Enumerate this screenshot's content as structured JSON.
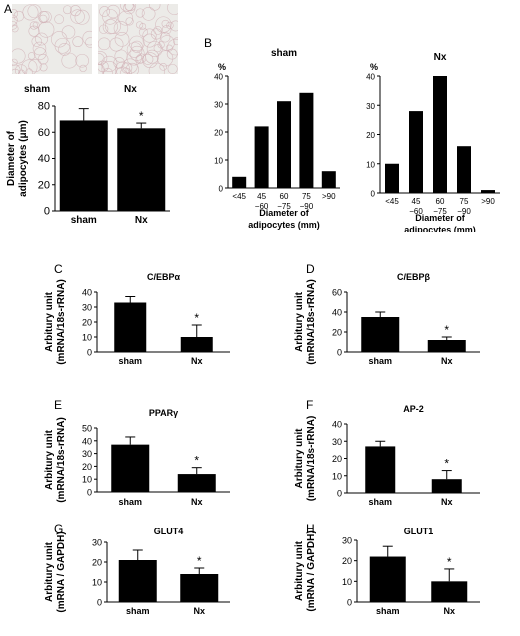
{
  "panel_letters": [
    "A",
    "B",
    "C",
    "D",
    "E",
    "F",
    "G",
    "H"
  ],
  "photos": [
    {
      "label": "sham"
    },
    {
      "label": "Nx"
    }
  ],
  "colors": {
    "bar": "#000000",
    "axis": "#000000",
    "photo_bg": "#ecebe8",
    "photo_cells": "#d2b3b8"
  },
  "chart_data": [
    {
      "panel": "A",
      "type": "bar",
      "categories": [
        "sham",
        "Nx"
      ],
      "values": [
        69,
        63
      ],
      "errors": [
        9,
        4
      ],
      "significance": [
        "",
        "*"
      ],
      "title": "",
      "xlabel": "",
      "ylabel_lines": [
        "Diameter of",
        "adipocytes (μm)"
      ],
      "ylim": [
        0,
        80
      ],
      "yticks": [
        0,
        20,
        40,
        60,
        80
      ]
    },
    {
      "panel": "B",
      "type": "bar",
      "categories": [
        [
          "<45"
        ],
        [
          "45",
          "−60"
        ],
        [
          "60",
          "−75"
        ],
        [
          "75",
          "−90"
        ],
        [
          ">90"
        ]
      ],
      "values": [
        4,
        22,
        31,
        34,
        6
      ],
      "title": "sham",
      "unit": "%",
      "xlabel_lines": [
        "Diameter of",
        "adipocytes (mm)"
      ],
      "ylim": [
        0,
        40
      ],
      "yticks": [
        0,
        10,
        20,
        30,
        40
      ]
    },
    {
      "panel": "B",
      "type": "bar",
      "categories": [
        [
          "<45"
        ],
        [
          "45",
          "−60"
        ],
        [
          "60",
          "−75"
        ],
        [
          "75",
          "−90"
        ],
        [
          ">90"
        ]
      ],
      "values": [
        10,
        28,
        40,
        16,
        1
      ],
      "title": "Nx",
      "unit": "%",
      "xlabel_lines": [
        "Diameter of",
        "adipocytes (mm)"
      ],
      "ylim": [
        0,
        40
      ],
      "yticks": [
        0,
        10,
        20,
        30,
        40
      ]
    },
    {
      "panel": "C",
      "type": "bar",
      "categories": [
        "sham",
        "Nx"
      ],
      "values": [
        33,
        10
      ],
      "errors": [
        4,
        8
      ],
      "significance": [
        "",
        "*"
      ],
      "title": "C/EBPα",
      "ylabel_lines": [
        "Arbitury unit",
        "(mRNA/18s-rRNA)"
      ],
      "ylim": [
        0,
        40
      ],
      "yticks": [
        0,
        10,
        20,
        30,
        40
      ]
    },
    {
      "panel": "D",
      "type": "bar",
      "categories": [
        "sham",
        "Nx"
      ],
      "values": [
        35,
        12
      ],
      "errors": [
        5,
        3
      ],
      "significance": [
        "",
        "*"
      ],
      "title": "C/EBPβ",
      "ylabel_lines": [
        "Arbitury unit",
        "(mRNA/18s-rRNA)"
      ],
      "ylim": [
        0,
        60
      ],
      "yticks": [
        0,
        20,
        40,
        60
      ]
    },
    {
      "panel": "E",
      "type": "bar",
      "categories": [
        "sham",
        "Nx"
      ],
      "values": [
        37,
        14
      ],
      "errors": [
        6,
        5
      ],
      "significance": [
        "",
        "*"
      ],
      "title": "PPARγ",
      "ylabel_lines": [
        "Arbitury unit",
        "(mRNA/18s-rRNA)"
      ],
      "ylim": [
        0,
        50
      ],
      "yticks": [
        0,
        10,
        20,
        30,
        40,
        50
      ]
    },
    {
      "panel": "F",
      "type": "bar",
      "categories": [
        "sham",
        "Nx"
      ],
      "values": [
        27,
        8
      ],
      "errors": [
        3,
        5
      ],
      "significance": [
        "",
        "*"
      ],
      "title": "AP-2",
      "ylabel_lines": [
        "Arbitury unit",
        "(mRNA/18s-rRNA)"
      ],
      "ylim": [
        0,
        40
      ],
      "yticks": [
        0,
        10,
        20,
        30,
        40
      ]
    },
    {
      "panel": "G",
      "type": "bar",
      "categories": [
        "sham",
        "Nx"
      ],
      "values": [
        21,
        14
      ],
      "errors": [
        5,
        3
      ],
      "significance": [
        "",
        "*"
      ],
      "title": "GLUT4",
      "ylabel_lines": [
        "Arbitury unit",
        "(mRNA / GAPDH)"
      ],
      "ylim": [
        0,
        30
      ],
      "yticks": [
        0,
        10,
        20,
        30
      ]
    },
    {
      "panel": "H",
      "type": "bar",
      "categories": [
        "sham",
        "Nx"
      ],
      "values": [
        22,
        10
      ],
      "errors": [
        5,
        6
      ],
      "significance": [
        "",
        "*"
      ],
      "title": "GLUT1",
      "ylabel_lines": [
        "Arbitury unit",
        "(mRNA / GAPDH)"
      ],
      "ylim": [
        0,
        30
      ],
      "yticks": [
        0,
        10,
        20,
        30
      ]
    }
  ]
}
